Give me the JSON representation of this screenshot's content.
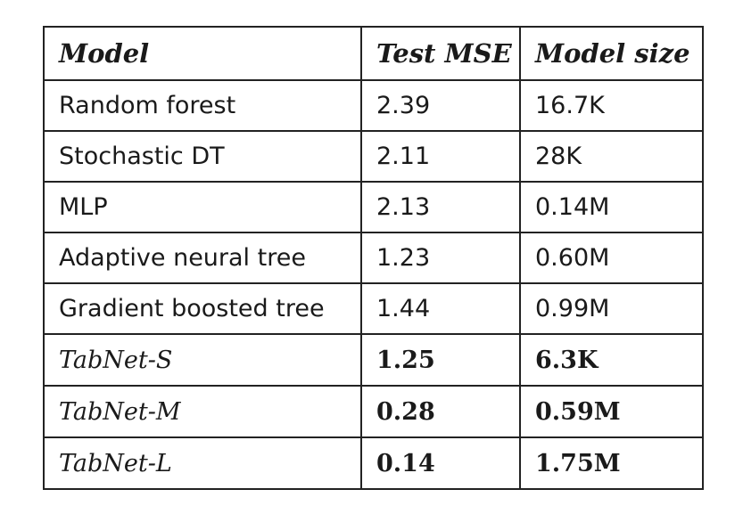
{
  "chart_data": {
    "type": "table",
    "columns": [
      "Model",
      "Test MSE",
      "Model size"
    ],
    "rows": [
      {
        "model": "Random forest",
        "test_mse": "2.39",
        "model_size": "16.7K",
        "highlight": false
      },
      {
        "model": "Stochastic DT",
        "test_mse": "2.11",
        "model_size": "28K",
        "highlight": false
      },
      {
        "model": "MLP",
        "test_mse": "2.13",
        "model_size": "0.14M",
        "highlight": false
      },
      {
        "model": "Adaptive neural tree",
        "test_mse": "1.23",
        "model_size": "0.60M",
        "highlight": false
      },
      {
        "model": "Gradient boosted tree",
        "test_mse": "1.44",
        "model_size": "0.99M",
        "highlight": false
      },
      {
        "model": "TabNet-S",
        "test_mse": "1.25",
        "model_size": "6.3K",
        "highlight": true
      },
      {
        "model": "TabNet-M",
        "test_mse": "0.28",
        "model_size": "0.59M",
        "highlight": true
      },
      {
        "model": "TabNet-L",
        "test_mse": "0.14",
        "model_size": "1.75M",
        "highlight": true
      }
    ]
  }
}
